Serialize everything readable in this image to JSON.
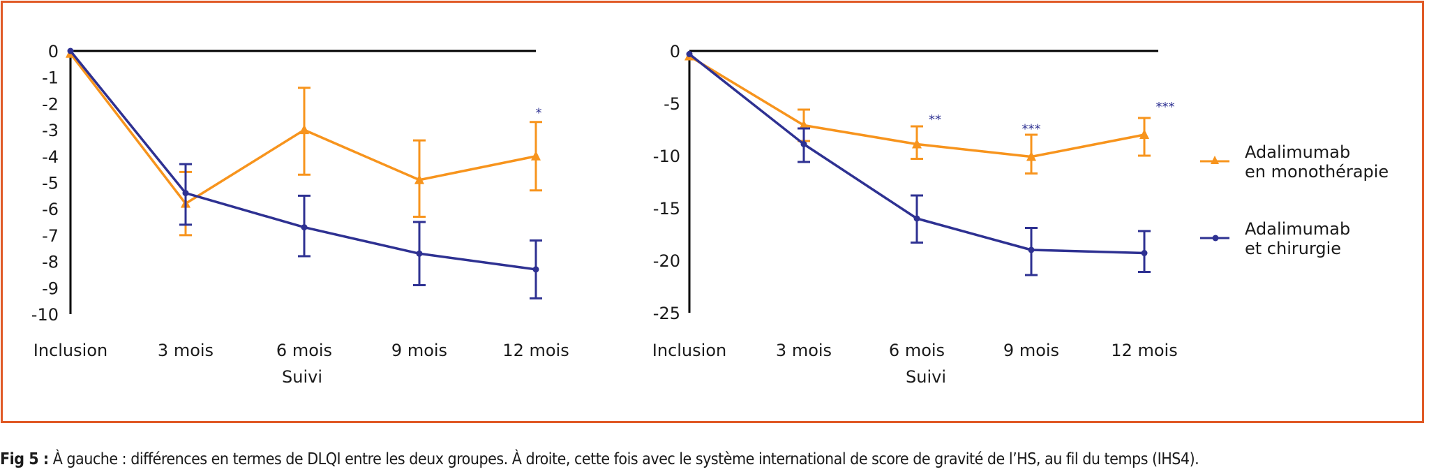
{
  "colors": {
    "frame": "#e05a26",
    "monotherapie": "#f7941d",
    "chirurgie": "#2e3192",
    "axis": "#000000",
    "significance": "#2e3192"
  },
  "legend": {
    "items": [
      {
        "series": "monotherapie",
        "line1": "Adalimumab",
        "line2": "en monothérapie",
        "marker": "triangle"
      },
      {
        "series": "chirurgie",
        "line1": "Adalimumab",
        "line2": "et chirurgie",
        "marker": "circle"
      }
    ]
  },
  "caption": {
    "label": "Fig 5 :",
    "text": " À gauche : différences en termes de DLQI entre les deux groupes. À droite, cette fois avec le système international de score de gravité de l’HS, au fil du temps (IHS4)."
  },
  "chart_data": [
    {
      "type": "line",
      "id": "dlqi",
      "title": "",
      "xlabel": "Suivi",
      "ylabel": "",
      "categories": [
        "Inclusion",
        "3 mois",
        "6 mois",
        "9 mois",
        "12 mois"
      ],
      "ylim": [
        -10,
        0
      ],
      "yticks": [
        0,
        -1,
        -2,
        -3,
        -4,
        -5,
        -6,
        -7,
        -8,
        -9,
        -10
      ],
      "ytick_labels": [
        "0",
        "-1",
        "-2",
        "-3",
        "-4",
        "-5",
        "-6",
        "-7",
        "-8",
        "-9",
        "-10"
      ],
      "grid": false,
      "series": [
        {
          "name": "Adalimumab en monothérapie",
          "key": "monotherapie",
          "marker": "triangle",
          "values": [
            -0.1,
            -5.8,
            -3.0,
            -4.9,
            -4.0
          ],
          "err_upper": [
            null,
            -4.6,
            -1.4,
            -3.4,
            -2.7
          ],
          "err_lower": [
            null,
            -7.0,
            -4.7,
            -6.3,
            -5.3
          ]
        },
        {
          "name": "Adalimumab et chirurgie",
          "key": "chirurgie",
          "marker": "circle",
          "values": [
            0.0,
            -5.4,
            -6.7,
            -7.7,
            -8.3
          ],
          "err_upper": [
            null,
            -4.3,
            -5.5,
            -6.5,
            -7.2
          ],
          "err_lower": [
            null,
            -6.6,
            -7.8,
            -8.9,
            -9.4
          ]
        }
      ],
      "annotations": [
        {
          "category": "12 mois",
          "text": "*",
          "y": -2.3
        }
      ]
    },
    {
      "type": "line",
      "id": "ihs4",
      "title": "",
      "xlabel": "Suivi",
      "ylabel": "",
      "categories": [
        "Inclusion",
        "3 mois",
        "6 mois",
        "9 mois",
        "12 mois"
      ],
      "ylim": [
        -25,
        0
      ],
      "yticks": [
        0,
        -5,
        -10,
        -15,
        -20,
        -25
      ],
      "ytick_labels": [
        "0",
        "-5",
        "-10",
        "-15",
        "-20",
        "-25"
      ],
      "grid": false,
      "series": [
        {
          "name": "Adalimumab en monothérapie",
          "key": "monotherapie",
          "marker": "triangle",
          "values": [
            -0.5,
            -7.1,
            -8.9,
            -10.1,
            -8.0
          ],
          "err_upper": [
            null,
            -5.6,
            -7.2,
            -8.0,
            -6.4
          ],
          "err_lower": [
            null,
            -8.6,
            -10.3,
            -11.7,
            -10.0
          ]
        },
        {
          "name": "Adalimumab et chirurgie",
          "key": "chirurgie",
          "marker": "circle",
          "values": [
            -0.3,
            -8.9,
            -16.0,
            -19.0,
            -19.3
          ],
          "err_upper": [
            null,
            -7.4,
            -13.8,
            -16.9,
            -17.2
          ],
          "err_lower": [
            null,
            -10.6,
            -18.3,
            -21.4,
            -21.1
          ]
        }
      ],
      "annotations": [
        {
          "category": "6 mois",
          "text": "**",
          "y": -6.4
        },
        {
          "category": "9 mois",
          "text": "***",
          "y": -7.3
        },
        {
          "category": "12 mois",
          "text": "***",
          "y": -5.2
        }
      ]
    }
  ]
}
